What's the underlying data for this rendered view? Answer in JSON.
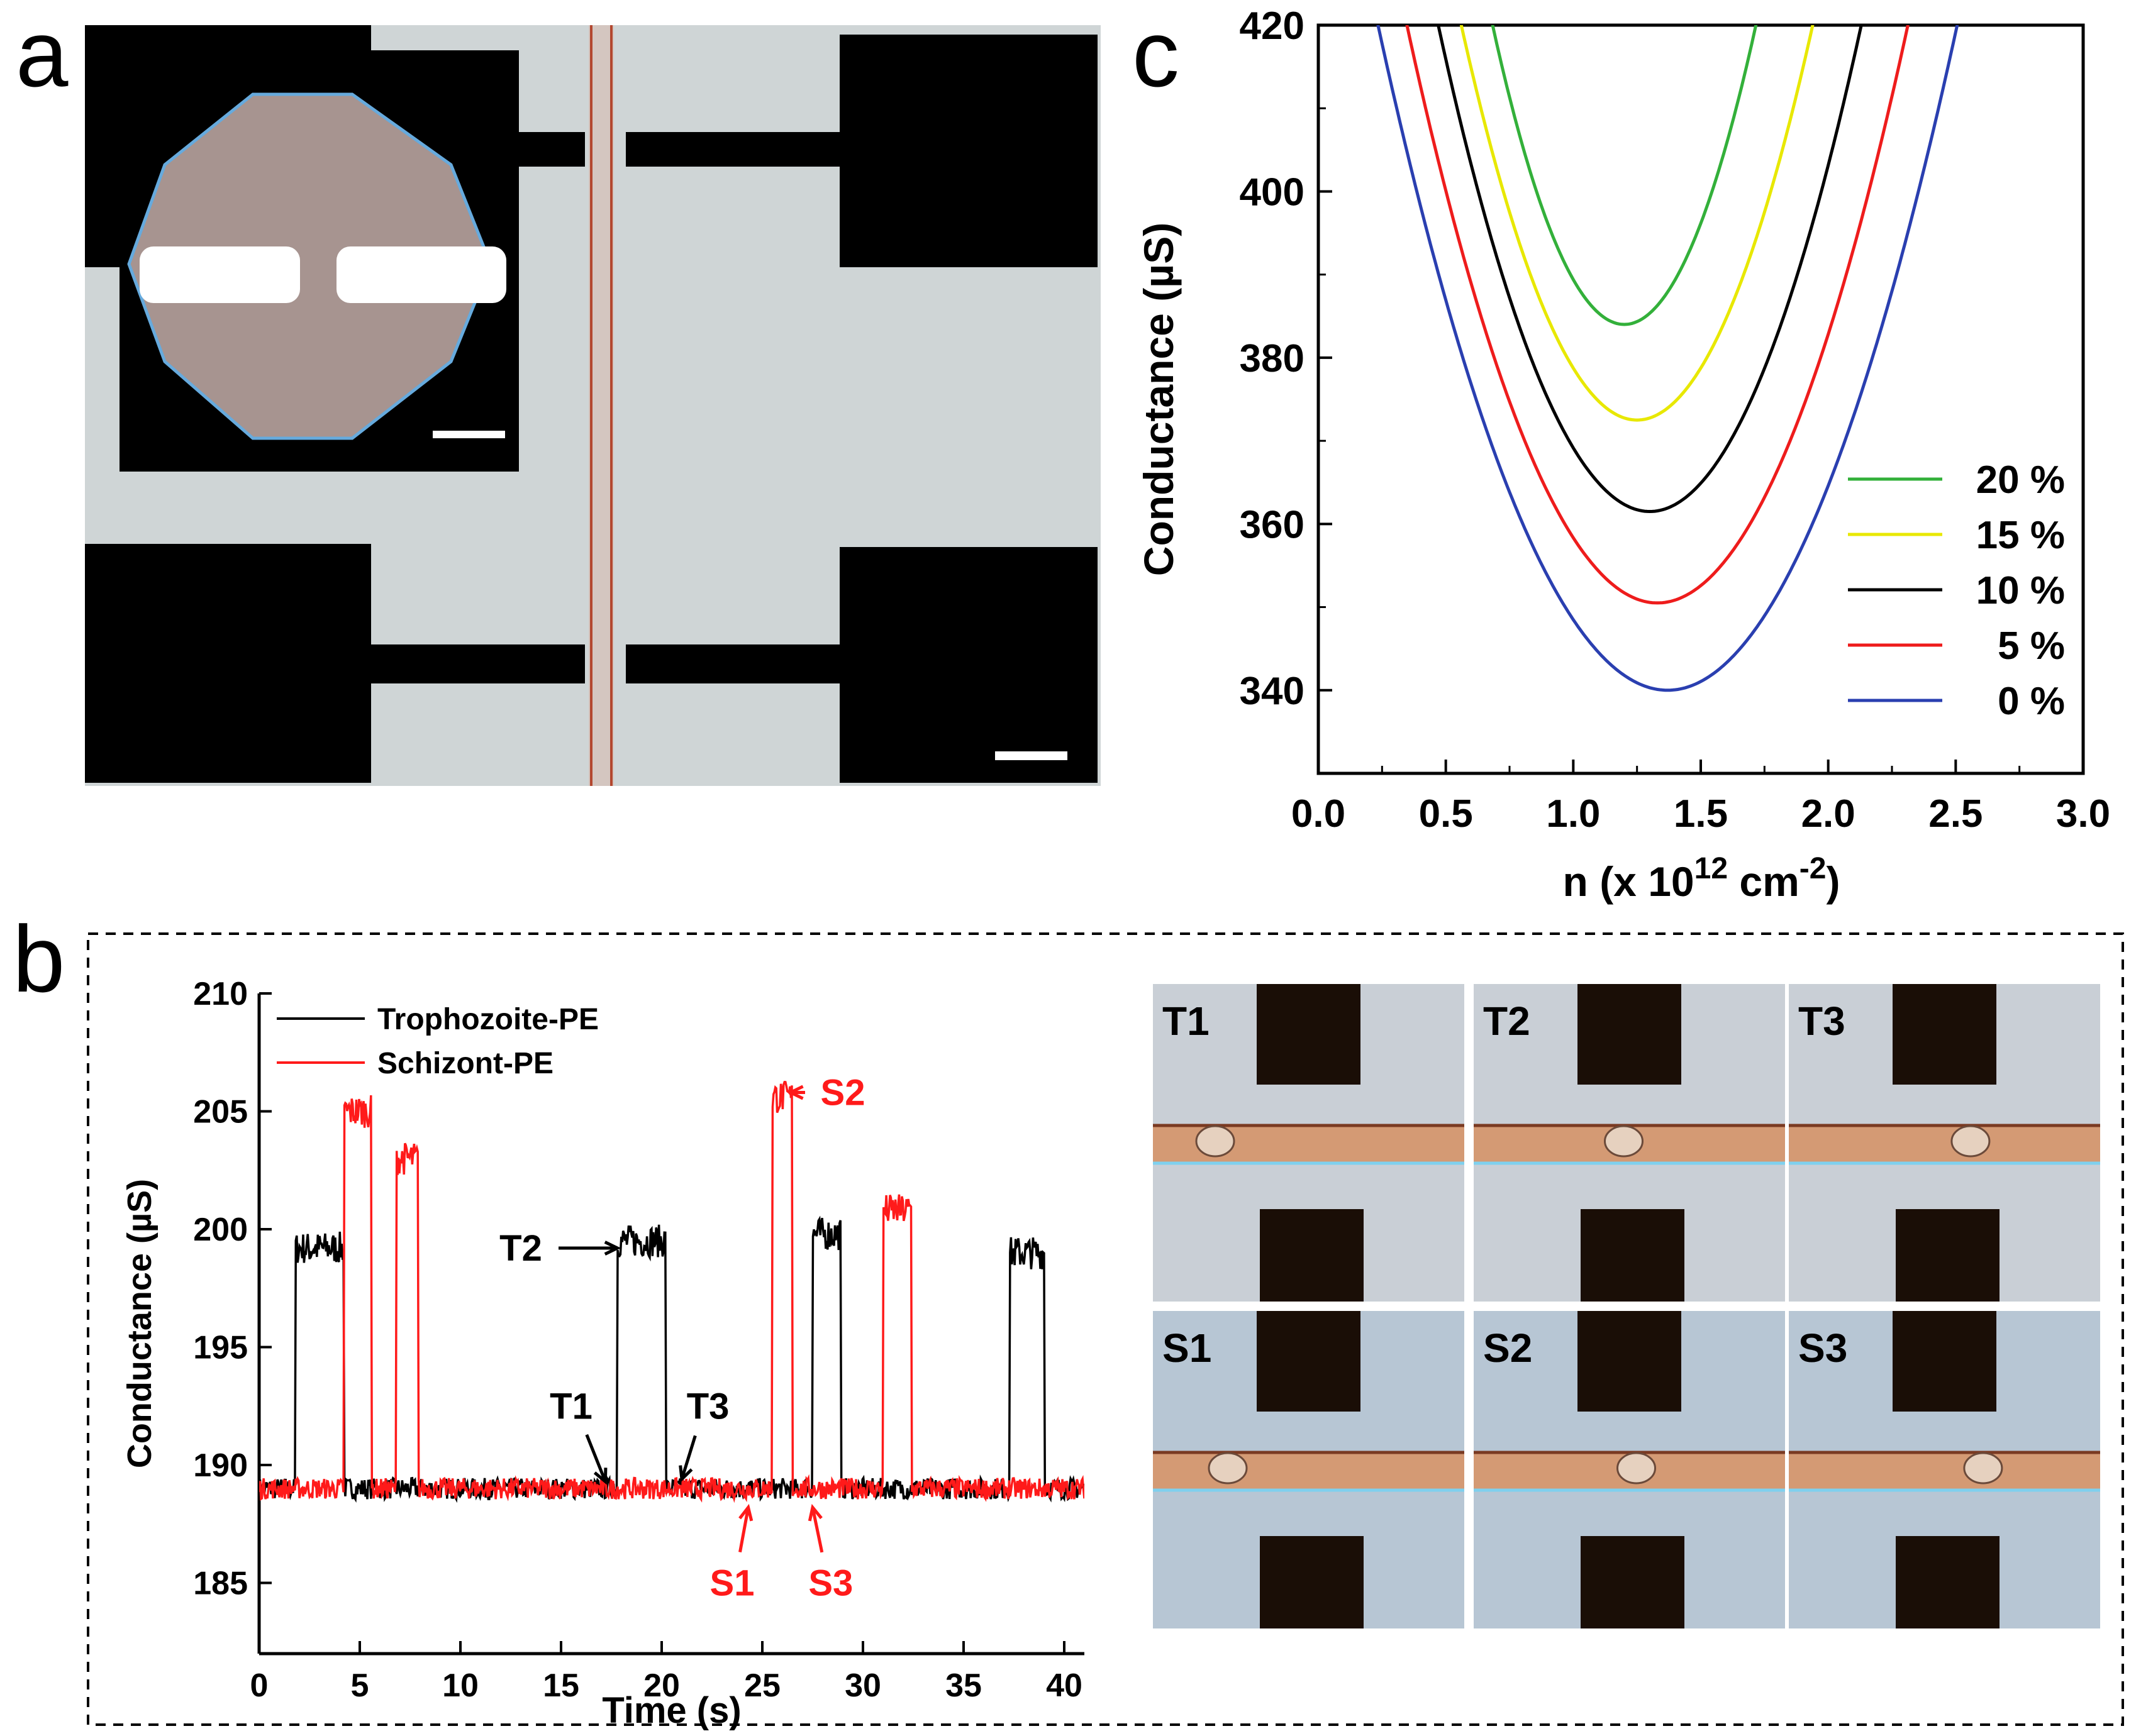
{
  "panels": {
    "a": "a",
    "b": "b",
    "c": "c"
  },
  "colors": {
    "black_trace": "#000000",
    "red_trace": "#ff1a1a",
    "green": "#33b03a",
    "yellow": "#e8e800",
    "red": "#ee1c1c",
    "blue": "#2a3fb0"
  },
  "panel_a": {
    "description_icons": [
      "electrode-pad-icon",
      "channel-icon",
      "octagon-inset-icon",
      "scale-bar-icon"
    ]
  },
  "panel_b_tiles": {
    "labels": [
      "T1",
      "T2",
      "T3",
      "S1",
      "S2",
      "S3"
    ]
  },
  "chart_data": [
    {
      "type": "line",
      "panel": "c",
      "title": "",
      "xlabel": "n (x 10",
      "xlabel_sup1": "12",
      "xlabel_mid": " cm",
      "xlabel_sup2": "-2",
      "xlabel_end": ")",
      "ylabel": "Conductance (µS)",
      "xlim": [
        0.0,
        3.0
      ],
      "ylim": [
        330,
        420
      ],
      "xticks": [
        "0.0",
        "0.5",
        "1.0",
        "1.5",
        "2.0",
        "2.5",
        "3.0"
      ],
      "yticks": [
        "340",
        "360",
        "380",
        "400",
        "420"
      ],
      "legend_position": "right",
      "series": [
        {
          "name": "20 %",
          "color": "#33b03a",
          "min_x": 1.2,
          "min_y": 384,
          "curvature": 135
        },
        {
          "name": "15 %",
          "color": "#e8e800",
          "min_x": 1.25,
          "min_y": 372.5,
          "curvature": 100
        },
        {
          "name": "10 %",
          "color": "#000000",
          "min_x": 1.3,
          "min_y": 361.5,
          "curvature": 85
        },
        {
          "name": "5 %",
          "color": "#ee1c1c",
          "min_x": 1.33,
          "min_y": 350.5,
          "curvature": 72
        },
        {
          "name": "0 %",
          "color": "#2a3fb0",
          "min_x": 1.37,
          "min_y": 340,
          "curvature": 62
        }
      ]
    },
    {
      "type": "line",
      "panel": "b",
      "title": "",
      "xlabel": "Time (s)",
      "ylabel": "Conductance (µS)",
      "xlim": [
        0,
        41
      ],
      "ylim": [
        182,
        210
      ],
      "xticks": [
        "0",
        "5",
        "10",
        "15",
        "20",
        "25",
        "30",
        "35",
        "40"
      ],
      "yticks": [
        "185",
        "190",
        "195",
        "200",
        "205",
        "210"
      ],
      "legend_position": "top-left",
      "baseline": 189,
      "series": [
        {
          "name": "Trophozoite-PE",
          "color": "#000000",
          "pulses": [
            [
              1.8,
              4.2,
              199.2
            ],
            [
              17.8,
              20.2,
              199.5
            ],
            [
              27.5,
              28.9,
              199.8
            ],
            [
              37.3,
              39.0,
              199.0
            ]
          ]
        },
        {
          "name": "Schizont-PE",
          "color": "#ff1a1a",
          "pulses": [
            [
              4.2,
              5.6,
              205.0
            ],
            [
              6.8,
              7.9,
              203.0
            ],
            [
              25.5,
              26.5,
              205.6
            ],
            [
              31.0,
              32.4,
              200.8
            ]
          ]
        }
      ],
      "annotations": [
        {
          "text": "T1",
          "color": "#000000",
          "x": 17.2,
          "y": 189.3,
          "label_x": 15.5,
          "label_y": 192.5
        },
        {
          "text": "T2",
          "color": "#000000",
          "x": 17.8,
          "y": 199.2,
          "label_x": 13.0,
          "label_y": 199.2
        },
        {
          "text": "T3",
          "color": "#000000",
          "x": 21.0,
          "y": 189.4,
          "label_x": 22.3,
          "label_y": 192.5
        },
        {
          "text": "S1",
          "color": "#ff1a1a",
          "x": 24.3,
          "y": 188.2,
          "label_x": 23.5,
          "label_y": 185.0
        },
        {
          "text": "S2",
          "color": "#ff1a1a",
          "x": 26.4,
          "y": 205.8,
          "label_x": 29.0,
          "label_y": 205.8
        },
        {
          "text": "S3",
          "color": "#ff1a1a",
          "x": 27.5,
          "y": 188.2,
          "label_x": 28.4,
          "label_y": 185.0
        }
      ]
    }
  ]
}
